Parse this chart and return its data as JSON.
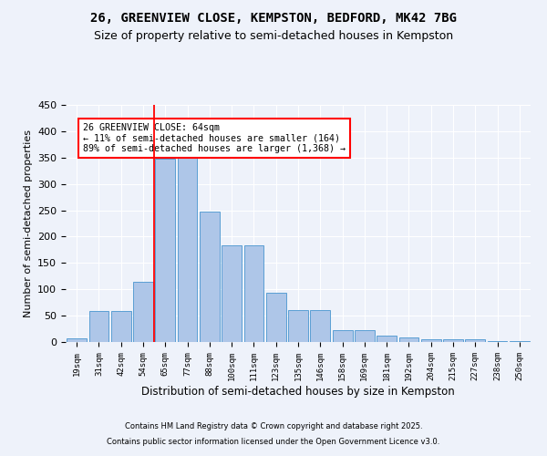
{
  "title1": "26, GREENVIEW CLOSE, KEMPSTON, BEDFORD, MK42 7BG",
  "title2": "Size of property relative to semi-detached houses in Kempston",
  "xlabel": "Distribution of semi-detached houses by size in Kempston",
  "ylabel": "Number of semi-detached properties",
  "bin_labels": [
    "19sqm",
    "31sqm",
    "42sqm",
    "54sqm",
    "65sqm",
    "77sqm",
    "88sqm",
    "100sqm",
    "111sqm",
    "123sqm",
    "135sqm",
    "146sqm",
    "158sqm",
    "169sqm",
    "181sqm",
    "192sqm",
    "204sqm",
    "215sqm",
    "227sqm",
    "238sqm",
    "250sqm"
  ],
  "bar_values": [
    7,
    58,
    58,
    115,
    348,
    375,
    248,
    183,
    183,
    93,
    61,
    61,
    22,
    22,
    12,
    8,
    5,
    5,
    5,
    2,
    2
  ],
  "bar_color": "#aec6e8",
  "bar_edge_color": "#5a9fd4",
  "annotation_text": "26 GREENVIEW CLOSE: 64sqm\n← 11% of semi-detached houses are smaller (164)\n89% of semi-detached houses are larger (1,368) →",
  "footer1": "Contains HM Land Registry data © Crown copyright and database right 2025.",
  "footer2": "Contains public sector information licensed under the Open Government Licence v3.0.",
  "bg_color": "#eef2fa",
  "ylim": [
    0,
    450
  ],
  "title1_fontsize": 10,
  "title2_fontsize": 9
}
